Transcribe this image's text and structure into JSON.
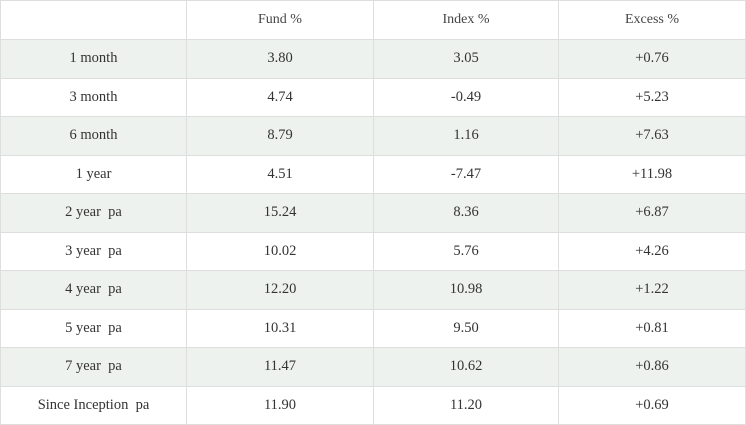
{
  "table": {
    "headers": [
      "",
      "Fund %",
      "Index %",
      "Excess %"
    ],
    "rows": [
      [
        "1 month",
        "3.80",
        "3.05",
        "+0.76"
      ],
      [
        "3 month",
        "4.74",
        "-0.49",
        "+5.23"
      ],
      [
        "6 month",
        "8.79",
        "1.16",
        "+7.63"
      ],
      [
        "1 year",
        "4.51",
        "-7.47",
        "+11.98"
      ],
      [
        "2 year  pa",
        "15.24",
        "8.36",
        "+6.87"
      ],
      [
        "3 year  pa",
        "10.02",
        "5.76",
        "+4.26"
      ],
      [
        "4 year  pa",
        "12.20",
        "10.98",
        "+1.22"
      ],
      [
        "5 year  pa",
        "10.31",
        "9.50",
        "+0.81"
      ],
      [
        "7 year  pa",
        "11.47",
        "10.62",
        "+0.86"
      ],
      [
        "Since Inception  pa",
        "11.90",
        "11.20",
        "+0.69"
      ]
    ]
  },
  "colors": {
    "row_stripe": "#eef2ee",
    "row_plain": "#ffffff",
    "border": "#dedede",
    "text": "#333333"
  }
}
